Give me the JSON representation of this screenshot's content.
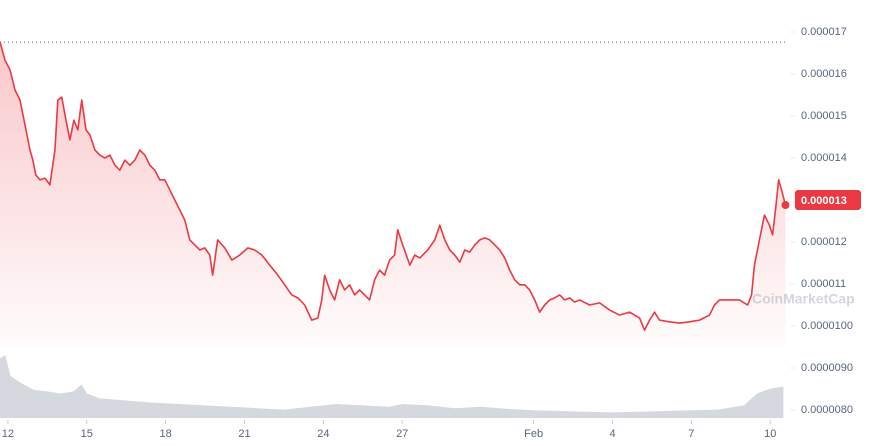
{
  "chart_data": {
    "type": "line",
    "color": "#ea3943",
    "x": [
      11.7,
      11.89,
      12.08,
      12.27,
      12.46,
      12.65,
      12.84,
      12.95,
      13.06,
      13.22,
      13.41,
      13.6,
      13.79,
      13.9,
      14.05,
      14.21,
      14.36,
      14.51,
      14.66,
      14.81,
      14.97,
      15.12,
      15.31,
      15.5,
      15.69,
      15.88,
      16.07,
      16.26,
      16.45,
      16.64,
      16.83,
      17.02,
      17.21,
      17.4,
      17.59,
      17.78,
      17.97,
      18.16,
      18.35,
      18.54,
      18.73,
      18.92,
      19.11,
      19.3,
      19.49,
      19.68,
      19.79,
      19.98,
      20.25,
      20.52,
      20.82,
      21.13,
      21.39,
      21.66,
      21.96,
      22.27,
      22.53,
      22.8,
      23.03,
      23.29,
      23.56,
      23.79,
      23.94,
      24.05,
      24.24,
      24.43,
      24.62,
      24.81,
      25.0,
      25.19,
      25.38,
      25.57,
      25.76,
      25.95,
      26.14,
      26.33,
      26.52,
      26.71,
      26.83,
      27.02,
      27.29,
      27.48,
      27.67,
      27.97,
      28.24,
      28.43,
      28.62,
      28.81,
      29.0,
      29.19,
      29.38,
      29.57,
      29.76,
      29.95,
      30.14,
      30.33,
      30.52,
      30.71,
      30.9,
      31.09,
      31.28,
      31.47,
      31.66,
      31.85,
      32.04,
      32.23,
      32.42,
      32.61,
      32.8,
      32.99,
      33.18,
      33.37,
      33.56,
      33.75,
      34.13,
      34.51,
      34.89,
      35.27,
      35.65,
      36.03,
      36.22,
      36.41,
      36.6,
      36.79,
      37.17,
      37.55,
      37.93,
      38.31,
      38.69,
      38.88,
      39.07,
      39.45,
      39.83,
      40.14,
      40.29,
      40.4,
      40.59,
      40.78,
      40.97,
      41.09,
      41.2,
      41.32,
      41.43,
      41.58
    ],
    "values": [
      1.676e-05,
      1.633e-05,
      1.61e-05,
      1.562e-05,
      1.538e-05,
      1.479e-05,
      1.419e-05,
      1.395e-05,
      1.36e-05,
      1.348e-05,
      1.352e-05,
      1.336e-05,
      1.419e-05,
      1.538e-05,
      1.545e-05,
      1.49e-05,
      1.443e-05,
      1.49e-05,
      1.467e-05,
      1.538e-05,
      1.467e-05,
      1.455e-05,
      1.419e-05,
      1.407e-05,
      1.4e-05,
      1.407e-05,
      1.383e-05,
      1.371e-05,
      1.395e-05,
      1.383e-05,
      1.395e-05,
      1.419e-05,
      1.407e-05,
      1.383e-05,
      1.371e-05,
      1.348e-05,
      1.348e-05,
      1.324e-05,
      1.3e-05,
      1.276e-05,
      1.252e-05,
      1.205e-05,
      1.193e-05,
      1.181e-05,
      1.186e-05,
      1.169e-05,
      1.121e-05,
      1.205e-05,
      1.186e-05,
      1.157e-05,
      1.169e-05,
      1.186e-05,
      1.181e-05,
      1.169e-05,
      1.145e-05,
      1.121e-05,
      1.098e-05,
      1.074e-05,
      1.067e-05,
      1.05e-05,
      1.014e-05,
      1.019e-05,
      1.062e-05,
      1.121e-05,
      1.086e-05,
      1.062e-05,
      1.11e-05,
      1.086e-05,
      1.098e-05,
      1.074e-05,
      1.086e-05,
      1.074e-05,
      1.062e-05,
      1.11e-05,
      1.133e-05,
      1.121e-05,
      1.157e-05,
      1.169e-05,
      1.229e-05,
      1.193e-05,
      1.145e-05,
      1.169e-05,
      1.162e-05,
      1.181e-05,
      1.205e-05,
      1.24e-05,
      1.205e-05,
      1.181e-05,
      1.169e-05,
      1.152e-05,
      1.181e-05,
      1.176e-05,
      1.193e-05,
      1.205e-05,
      1.21e-05,
      1.205e-05,
      1.193e-05,
      1.181e-05,
      1.162e-05,
      1.133e-05,
      1.11e-05,
      1.098e-05,
      1.098e-05,
      1.086e-05,
      1.062e-05,
      1.033e-05,
      1.05e-05,
      1.062e-05,
      1.067e-05,
      1.074e-05,
      1.062e-05,
      1.067e-05,
      1.057e-05,
      1.062e-05,
      1.05e-05,
      1.055e-05,
      1.038e-05,
      1.026e-05,
      1.033e-05,
      1.019e-05,
      9.9e-06,
      1.014e-05,
      1.033e-05,
      1.014e-05,
      1.01e-05,
      1.007e-05,
      1.01e-05,
      1.014e-05,
      1.026e-05,
      1.05e-05,
      1.062e-05,
      1.062e-05,
      1.062e-05,
      1.05e-05,
      1.074e-05,
      1.145e-05,
      1.205e-05,
      1.264e-05,
      1.24e-05,
      1.217e-05,
      1.276e-05,
      1.348e-05,
      1.324e-05,
      1.288e-05
    ],
    "current_price": 1.3e-05,
    "current_price_label": "0.000013",
    "xlim": [
      11.7,
      41.6
    ],
    "xticks": [
      12,
      15,
      18,
      21,
      24,
      27,
      {
        "value": 32,
        "label": "Feb"
      },
      {
        "value": 35,
        "label": "4"
      },
      {
        "value": 38,
        "label": "7"
      },
      {
        "value": 41,
        "label": "10"
      }
    ],
    "ylim": [
      7.9e-06,
      1.77e-05
    ],
    "yticks": [
      1.7e-05,
      1.6e-05,
      1.5e-05,
      1.4e-05,
      1.2e-05,
      1.1e-05,
      {
        "value": 1e-05,
        "label": "0.0000100"
      },
      {
        "value": 9e-06,
        "label": "0.0000090"
      },
      {
        "value": 8e-06,
        "label": "0.0000080"
      }
    ],
    "volume": {
      "color": "#d5d8de",
      "x": [
        11.7,
        11.9,
        12.1,
        12.5,
        13,
        13.5,
        14,
        14.5,
        14.8,
        15,
        15.5,
        16.5,
        17.5,
        18.5,
        19.5,
        20.5,
        21.5,
        22.5,
        23.5,
        24.5,
        25.5,
        26.5,
        27,
        28,
        29,
        30,
        31,
        32,
        33,
        34,
        35,
        36,
        37,
        38,
        39,
        40,
        40.5,
        41,
        41.5
      ],
      "values": [
        85,
        90,
        60,
        50,
        40,
        38,
        35,
        38,
        48,
        35,
        28,
        25,
        22,
        20,
        18,
        16,
        14,
        12,
        16,
        20,
        18,
        16,
        20,
        18,
        14,
        16,
        13,
        11,
        10,
        9,
        8,
        9,
        10,
        11,
        12,
        18,
        35,
        42,
        45
      ]
    },
    "y2lim": [
      0,
      100
    ],
    "watermark": "CoinMarketCap"
  }
}
